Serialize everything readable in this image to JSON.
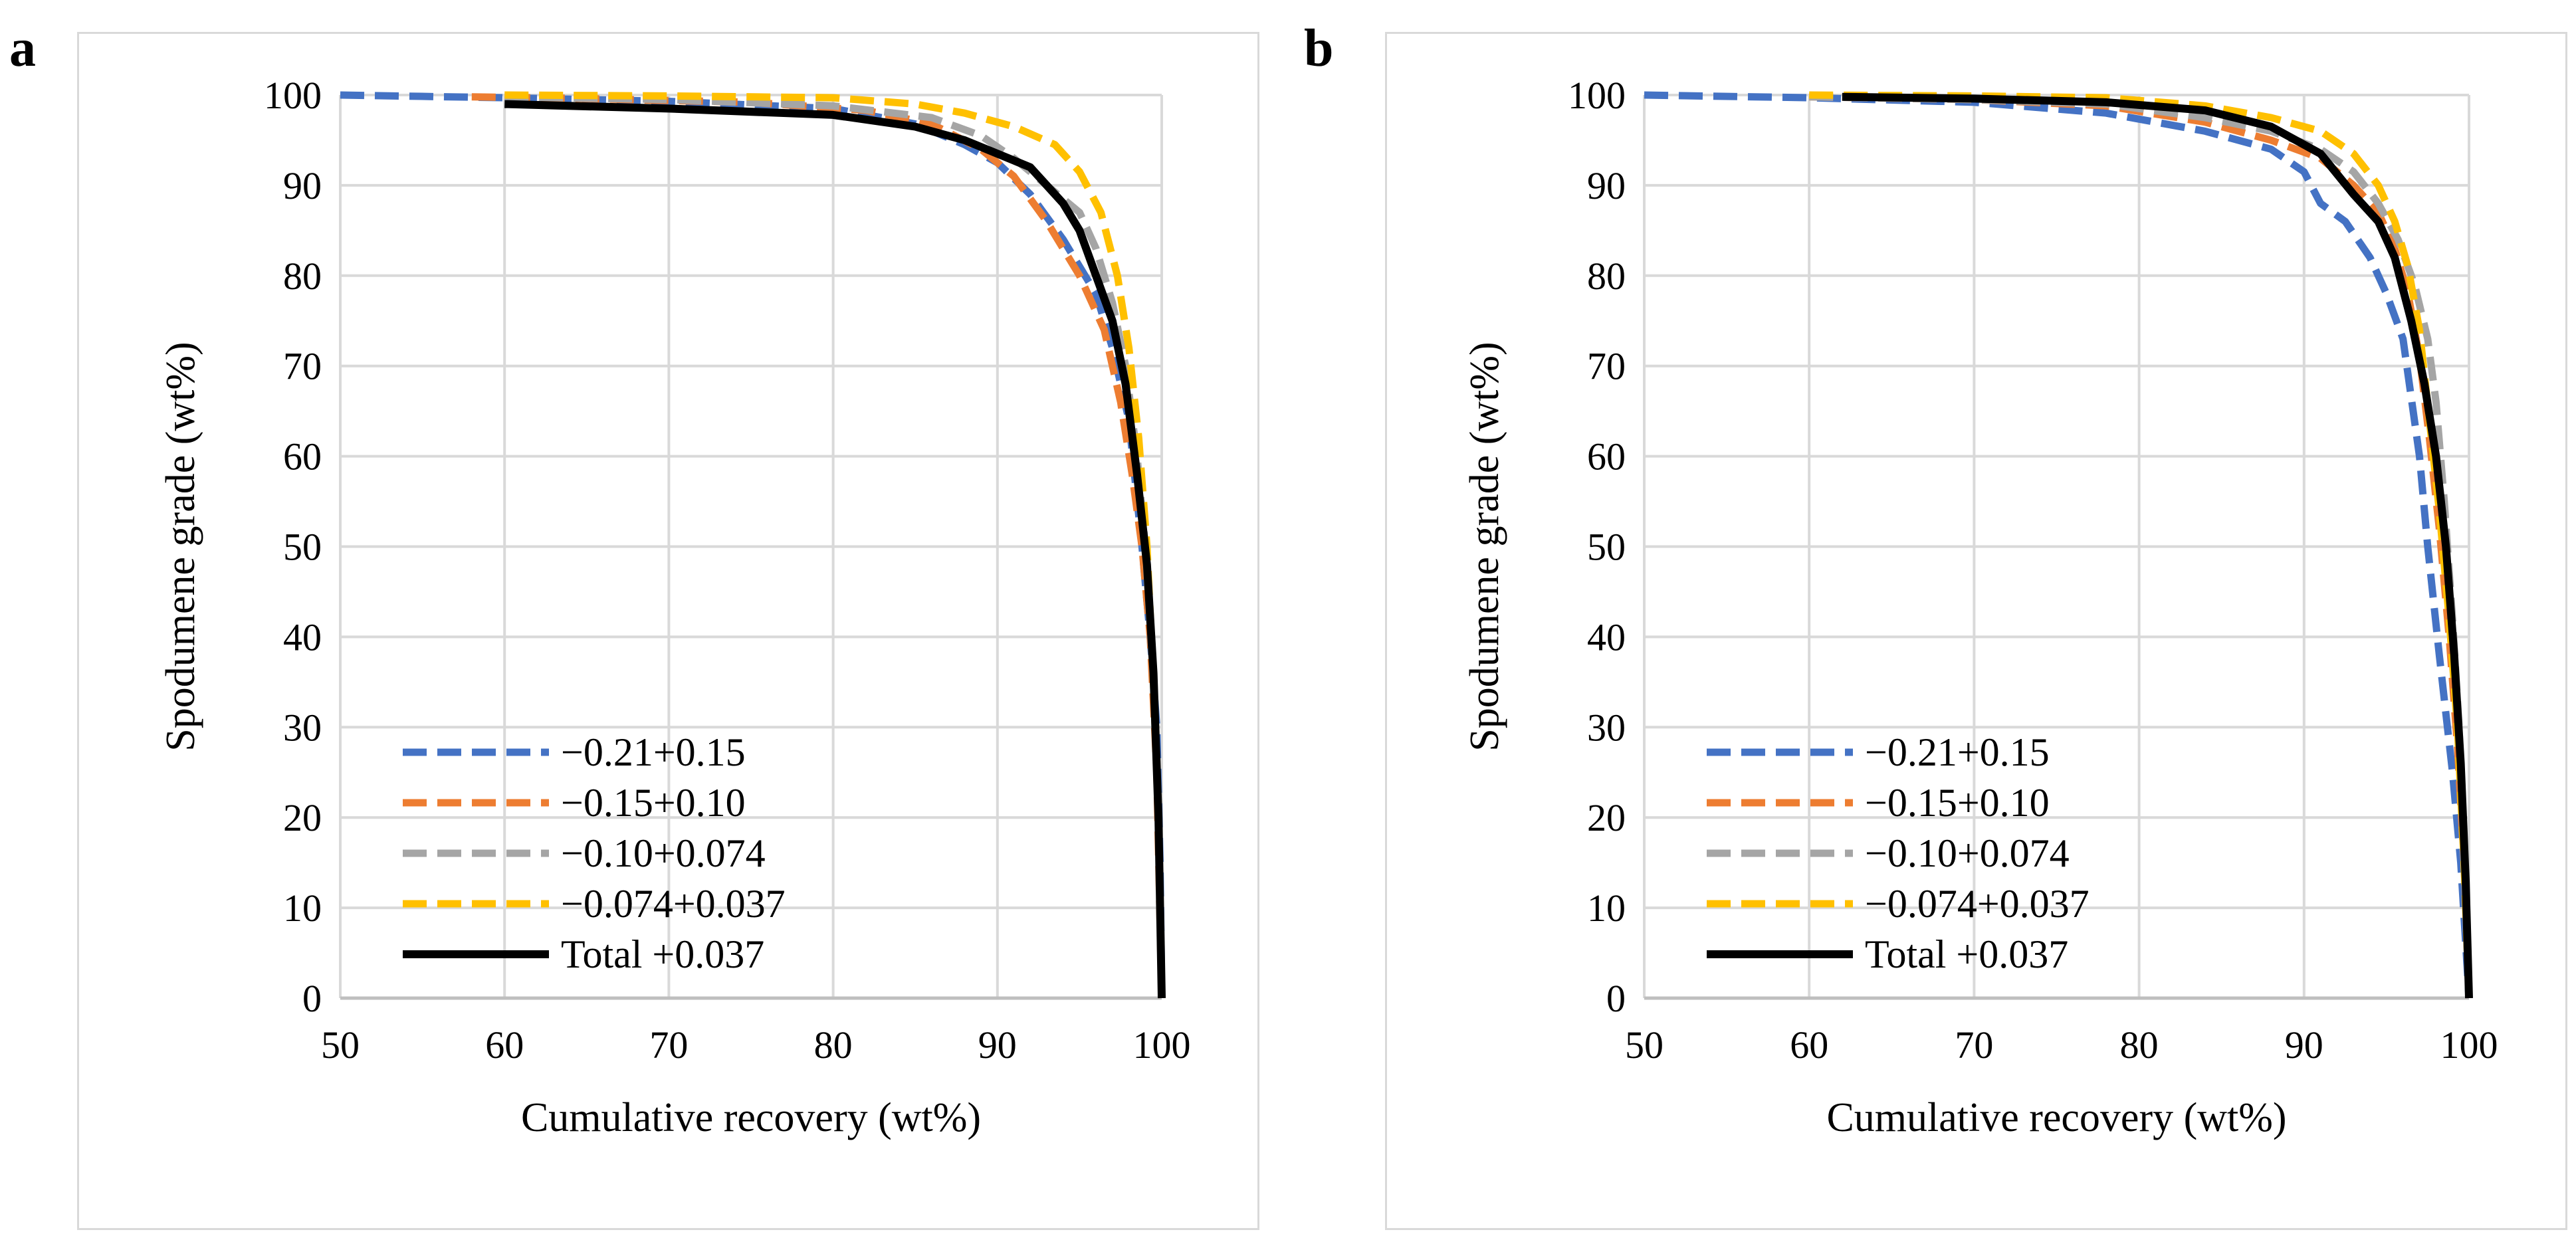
{
  "colors": {
    "s1": "#4472c4",
    "s2": "#ed7d31",
    "s3": "#a5a5a5",
    "s4": "#ffc000",
    "total": "#000000",
    "grid": "#d9d9d9",
    "axis": "#bfbfbf"
  },
  "chart_data": [
    {
      "type": "line",
      "panel_label": "a",
      "xlabel": "Cumulative recovery (wt%)",
      "ylabel": "Spodumene grade (wt%)",
      "xlim": [
        50,
        100
      ],
      "ylim": [
        0,
        100
      ],
      "x_ticks": [
        "50",
        "60",
        "70",
        "80",
        "90",
        "100"
      ],
      "y_ticks": [
        "0",
        "10",
        "20",
        "30",
        "40",
        "50",
        "60",
        "70",
        "80",
        "90",
        "100"
      ],
      "grid": true,
      "legend_position": "bottom-left",
      "series": [
        {
          "name": "−0.21+0.15",
          "color_key": "s1",
          "dash": "dashed",
          "x": [
            50,
            60,
            70,
            80,
            85,
            88,
            90,
            92,
            94,
            96,
            97,
            98,
            98.8,
            99.3,
            99.7,
            99.9,
            100
          ],
          "y": [
            100,
            99.7,
            99.3,
            98.5,
            96.8,
            94.5,
            92.5,
            89,
            84,
            78,
            72,
            64,
            50,
            40,
            30,
            15,
            0
          ]
        },
        {
          "name": "−0.15+0.10",
          "color_key": "s2",
          "dash": "dashed",
          "x": [
            58,
            65,
            75,
            82,
            86,
            89,
            91,
            93,
            95,
            96.5,
            97.5,
            98.2,
            98.8,
            99.3,
            99.7,
            100
          ],
          "y": [
            99.8,
            99.6,
            99.2,
            98.3,
            96.8,
            94,
            91,
            86,
            80,
            74,
            66,
            58,
            50,
            40,
            25,
            0
          ]
        },
        {
          "name": "−0.10+0.074",
          "color_key": "s3",
          "dash": "dashed",
          "x": [
            60,
            70,
            80,
            86,
            89,
            91,
            93,
            95,
            96,
            97,
            97.8,
            98.5,
            99,
            99.5,
            99.8,
            100
          ],
          "y": [
            99.8,
            99.5,
            98.8,
            97.5,
            95.5,
            93,
            90,
            87,
            83,
            77,
            70,
            60,
            50,
            35,
            20,
            0
          ]
        },
        {
          "name": "−0.074+0.037",
          "color_key": "s4",
          "dash": "dashed",
          "x": [
            60,
            70,
            80,
            85,
            88,
            91,
            93.5,
            95,
            96.3,
            97.3,
            98,
            98.6,
            99.1,
            99.5,
            99.8,
            100
          ],
          "y": [
            100,
            99.9,
            99.7,
            99,
            98,
            96.5,
            94.5,
            91.5,
            87,
            80,
            72,
            62,
            50,
            35,
            20,
            0
          ]
        },
        {
          "name": "Total +0.037",
          "color_key": "total",
          "dash": "solid",
          "x": [
            60,
            70,
            80,
            85,
            88,
            90,
            92,
            94,
            95,
            96,
            97,
            97.8,
            98.5,
            99.1,
            99.5,
            99.8,
            100
          ],
          "y": [
            99,
            98.5,
            97.8,
            96.5,
            95,
            93.5,
            92,
            88,
            85,
            80,
            75,
            68,
            58,
            48,
            36,
            20,
            0
          ]
        }
      ]
    },
    {
      "type": "line",
      "panel_label": "b",
      "xlabel": "Cumulative recovery (wt%)",
      "ylabel": "Spodumene grade (wt%)",
      "xlim": [
        50,
        100
      ],
      "ylim": [
        0,
        100
      ],
      "x_ticks": [
        "50",
        "60",
        "70",
        "80",
        "90",
        "100"
      ],
      "y_ticks": [
        "0",
        "10",
        "20",
        "30",
        "40",
        "50",
        "60",
        "70",
        "80",
        "90",
        "100"
      ],
      "grid": true,
      "legend_position": "bottom-left",
      "series": [
        {
          "name": "−0.21+0.15",
          "color_key": "s1",
          "dash": "dashed",
          "x": [
            50,
            60,
            70,
            78,
            84,
            88,
            90,
            91,
            92.5,
            94,
            95,
            96,
            97,
            97.5,
            98.2,
            99,
            99.5,
            100
          ],
          "y": [
            100,
            99.7,
            99.2,
            98,
            96,
            94,
            91.5,
            88,
            86,
            82,
            78,
            73,
            60,
            50,
            38,
            25,
            15,
            0
          ]
        },
        {
          "name": "−0.15+0.10",
          "color_key": "s2",
          "dash": "dashed",
          "x": [
            60,
            70,
            78,
            84,
            88,
            91,
            93,
            94.5,
            95.5,
            96.3,
            97,
            97.6,
            98.2,
            98.8,
            99.3,
            99.7,
            100
          ],
          "y": [
            99.8,
            99.5,
            98.8,
            97,
            95,
            93,
            90,
            87,
            83,
            78,
            71,
            62,
            52,
            40,
            28,
            15,
            0
          ]
        },
        {
          "name": "−0.10+0.074",
          "color_key": "s3",
          "dash": "dashed",
          "x": [
            60,
            70,
            78,
            84,
            88,
            91,
            93,
            94.5,
            95.7,
            96.7,
            97.5,
            98,
            98.5,
            99,
            99.4,
            99.7,
            100
          ],
          "y": [
            99.8,
            99.5,
            99,
            97.5,
            96,
            94,
            91.5,
            88,
            84,
            79,
            73,
            66,
            55,
            42,
            30,
            15,
            0
          ]
        },
        {
          "name": "−0.074+0.037",
          "color_key": "s4",
          "dash": "dashed",
          "x": [
            60,
            70,
            78,
            84,
            88,
            91,
            93,
            94.5,
            95.5,
            96.3,
            97,
            97.6,
            98.2,
            98.8,
            99.3,
            99.7,
            100
          ],
          "y": [
            100,
            99.9,
            99.7,
            98.8,
            97.5,
            96,
            93.5,
            90,
            86,
            81,
            74,
            64,
            54,
            42,
            30,
            15,
            0
          ]
        },
        {
          "name": "Total +0.037",
          "color_key": "total",
          "dash": "solid",
          "x": [
            62,
            70,
            78,
            84,
            88,
            91,
            93,
            94.5,
            95.5,
            96.5,
            97.3,
            98,
            98.6,
            99.1,
            99.5,
            99.8,
            100
          ],
          "y": [
            99.8,
            99.6,
            99.2,
            98.3,
            96.5,
            93.5,
            89,
            86,
            82,
            75,
            68,
            60,
            50,
            38,
            26,
            13,
            0
          ]
        }
      ]
    }
  ]
}
